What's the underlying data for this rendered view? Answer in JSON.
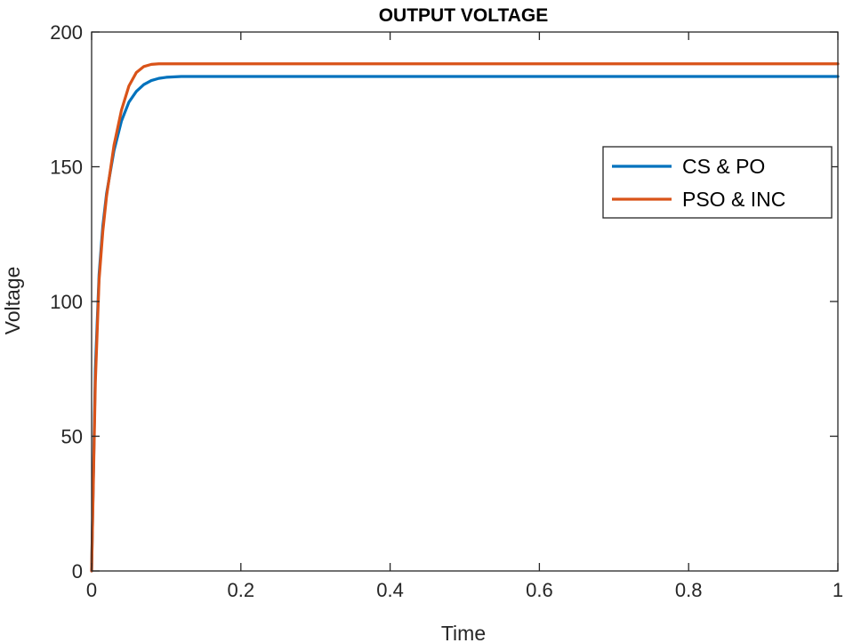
{
  "chart_data": {
    "type": "line",
    "title": "OUTPUT VOLTAGE",
    "xlabel": "Time",
    "ylabel": "Voltage",
    "xlim": [
      0,
      1
    ],
    "ylim": [
      0,
      200
    ],
    "xticks": [
      0,
      0.2,
      0.4,
      0.6,
      0.8,
      1
    ],
    "xtick_labels": [
      "0",
      "0.2",
      "0.4",
      "0.6",
      "0.8",
      "1"
    ],
    "yticks": [
      0,
      50,
      100,
      150,
      200
    ],
    "ytick_labels": [
      "0",
      "50",
      "100",
      "150",
      "200"
    ],
    "grid": false,
    "legend_position": "right",
    "series": [
      {
        "name": "CS & PO",
        "color": "#0072BD",
        "x": [
          0,
          0.005,
          0.01,
          0.015,
          0.02,
          0.03,
          0.04,
          0.05,
          0.06,
          0.07,
          0.08,
          0.09,
          0.1,
          0.12,
          0.15,
          0.2,
          0.3,
          0.4,
          0.5,
          0.6,
          0.7,
          0.8,
          0.9,
          1.0
        ],
        "values": [
          0,
          75,
          110,
          128,
          140,
          156,
          167,
          174,
          178,
          180.5,
          182,
          182.8,
          183.2,
          183.5,
          183.5,
          183.5,
          183.5,
          183.5,
          183.5,
          183.5,
          183.5,
          183.5,
          183.5,
          183.5
        ]
      },
      {
        "name": "PSO & INC",
        "color": "#D95319",
        "x": [
          0,
          0.005,
          0.01,
          0.015,
          0.02,
          0.03,
          0.04,
          0.05,
          0.06,
          0.07,
          0.08,
          0.09,
          0.1,
          0.12,
          0.15,
          0.2,
          0.3,
          0.4,
          0.5,
          0.6,
          0.7,
          0.8,
          0.9,
          1.0
        ],
        "values": [
          0,
          70,
          108,
          126,
          139,
          158,
          171,
          180,
          185,
          187.2,
          188,
          188.2,
          188.2,
          188.2,
          188.2,
          188.2,
          188.2,
          188.2,
          188.2,
          188.2,
          188.2,
          188.2,
          188.2,
          188.2
        ]
      }
    ]
  }
}
